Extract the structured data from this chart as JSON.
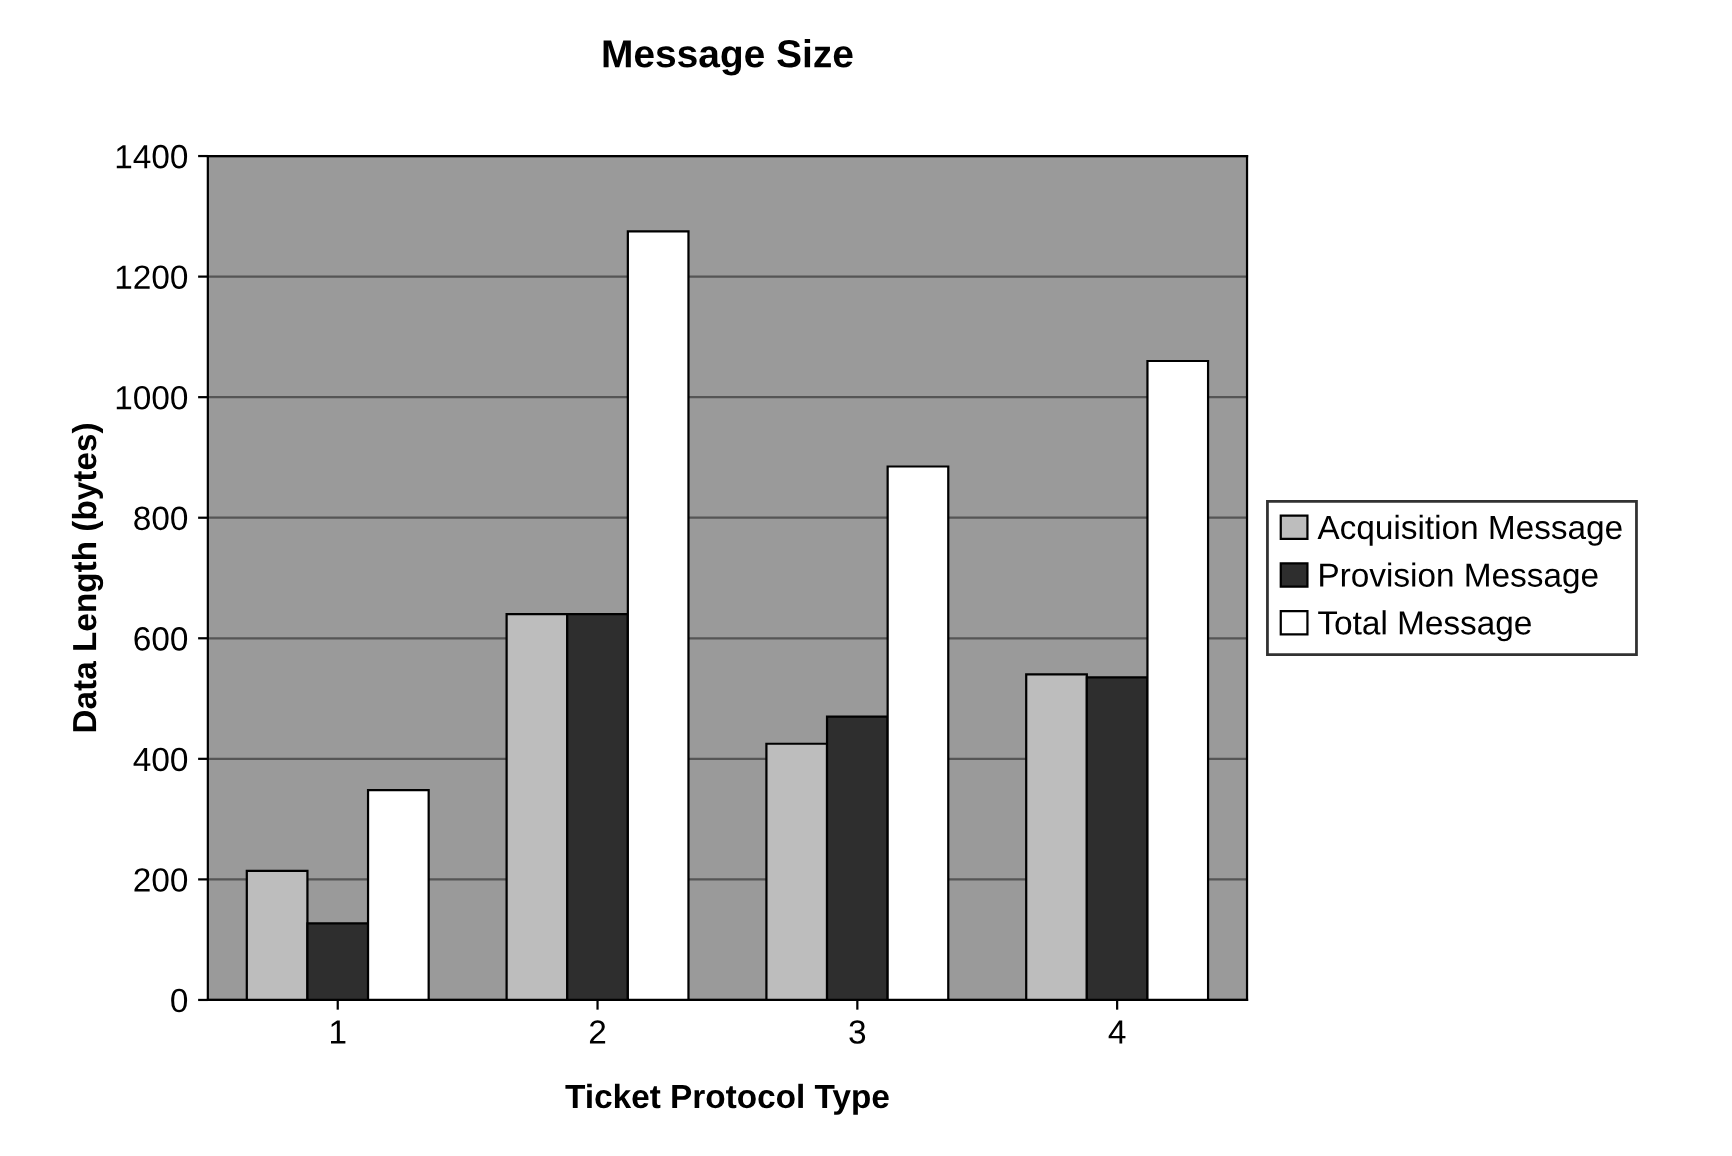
{
  "chart_data": {
    "type": "bar",
    "title": "Message Size",
    "xlabel": "Ticket Protocol Type",
    "ylabel": "Data Length (bytes)",
    "categories": [
      "1",
      "2",
      "3",
      "4"
    ],
    "series": [
      {
        "name": "Acquisition Message",
        "color": "#bdbdbd",
        "values": [
          214,
          640,
          425,
          540
        ]
      },
      {
        "name": "Provision Message",
        "color": "#2e2e2e",
        "values": [
          127,
          640,
          470,
          535
        ]
      },
      {
        "name": "Total Message",
        "color": "#ffffff",
        "values": [
          348,
          1275,
          885,
          1060
        ]
      }
    ],
    "ylim": [
      0,
      1400
    ],
    "yticks": [
      0,
      200,
      400,
      600,
      800,
      1000,
      1200,
      1400
    ],
    "grid": "y",
    "legend": "right"
  }
}
